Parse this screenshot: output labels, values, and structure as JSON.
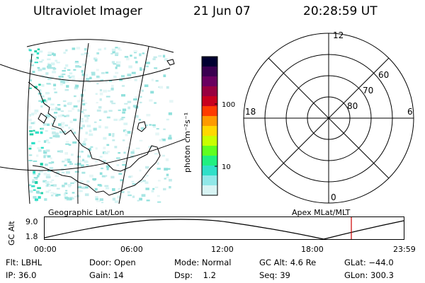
{
  "header": {
    "instrument": "Ultraviolet Imager",
    "date": "21 Jun 07",
    "time": "20:28:59 UT"
  },
  "map_panel": {
    "label": "Geographic Lat/Lon"
  },
  "colorbar": {
    "unit": "photon cm⁻²s⁻¹",
    "ticks": [
      "100",
      "10"
    ],
    "colors": [
      "#000030",
      "#3a0050",
      "#6a0060",
      "#980040",
      "#c8001e",
      "#ff3c00",
      "#ff9a00",
      "#ffd800",
      "#c8ff00",
      "#60ff20",
      "#20f080",
      "#30e0c8",
      "#90e8e8",
      "#d8f4f4"
    ]
  },
  "polar_panel": {
    "label": "Apex MLat/MLT",
    "mlt_labels": {
      "top": "12",
      "left": "18",
      "right": "6",
      "bottom": "0"
    },
    "lat_labels": [
      "60",
      "70",
      "80"
    ]
  },
  "altitude_plot": {
    "ylabel": "GC Alt",
    "y_ticks": [
      "9.0",
      "1.8"
    ],
    "x_ticks": [
      "00:00",
      "06:00",
      "12:00",
      "18:00",
      "23:59"
    ],
    "marker_color": "#cc0000"
  },
  "footer": {
    "row1": [
      "Flt: LBHL",
      "Door: Open",
      "Mode: Normal",
      "GC Alt: 4.6 Re",
      "GLat: −44.0"
    ],
    "row2": [
      "IP: 36.0",
      "Gain: 14",
      "Dsp:    1.2",
      "Seq: 39",
      "GLon: 300.3"
    ]
  }
}
